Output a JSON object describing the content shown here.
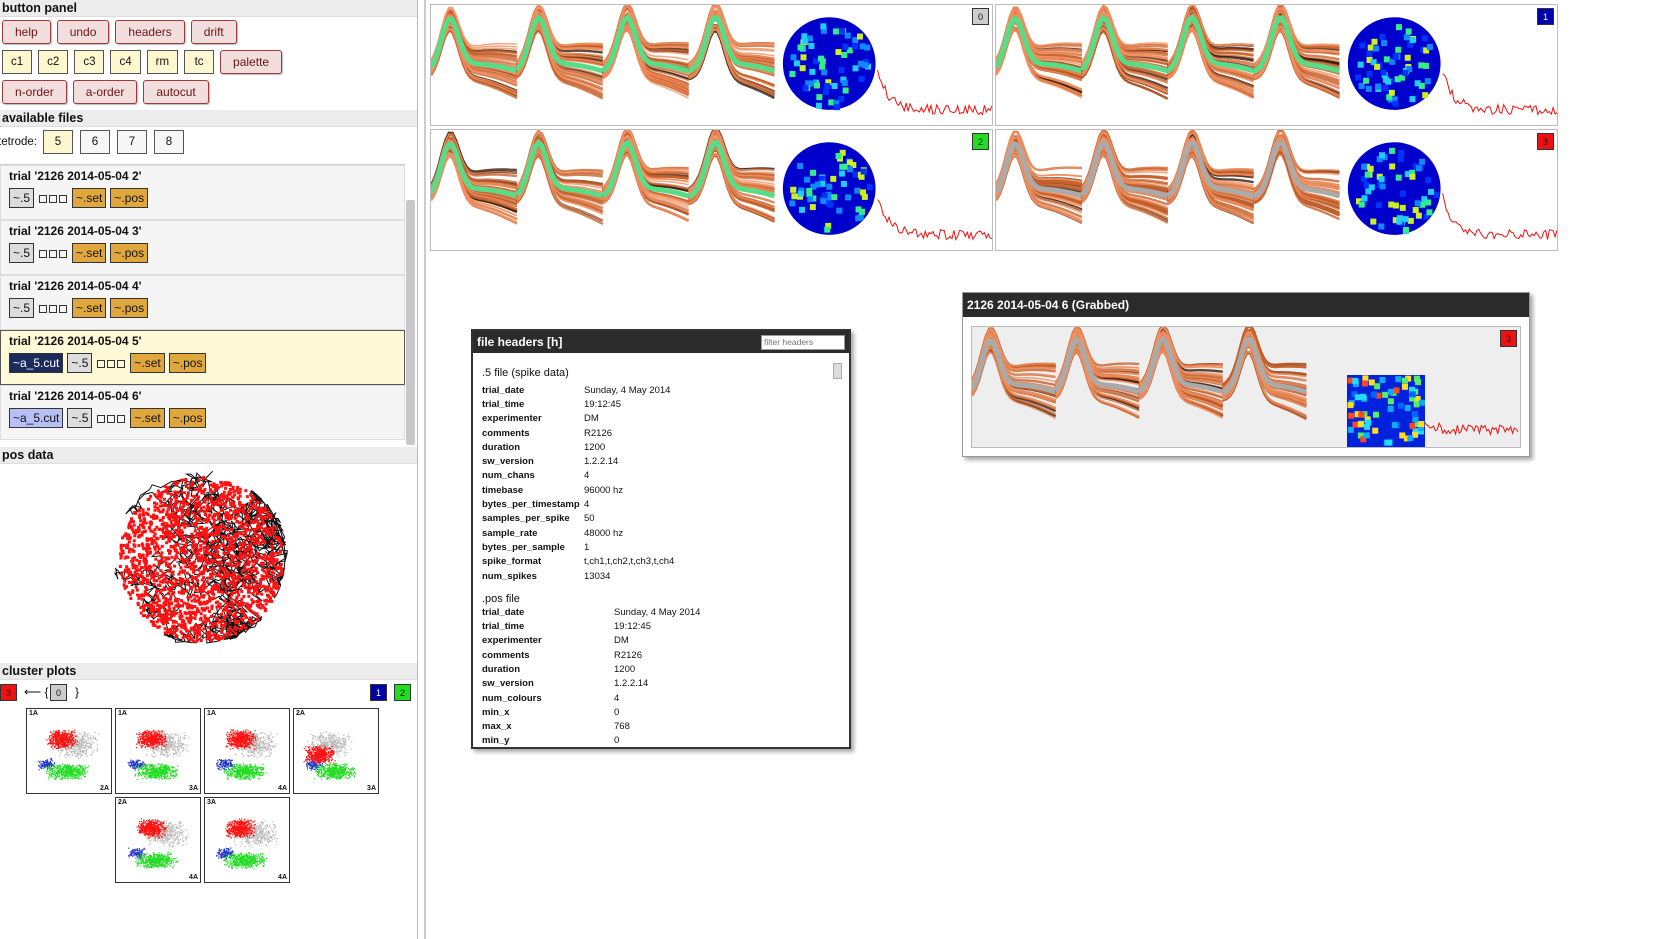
{
  "left": {
    "button_panel_title": "button panel",
    "row1": [
      "help",
      "undo",
      "headers",
      "drift"
    ],
    "row2": [
      "c1",
      "c2",
      "c3",
      "c4",
      "rm",
      "tc"
    ],
    "palette": "palette",
    "row3": [
      "n-order",
      "a-order",
      "autocut"
    ],
    "available_files_title": "available files",
    "tetrode_label": "tetrode:",
    "tetrodes": [
      "5",
      "6",
      "7",
      "8"
    ],
    "trials": [
      {
        "title": "trial '2126 2014-05-04 2'",
        "files": [
          "~.5",
          "~.set",
          "~.pos"
        ]
      },
      {
        "title": "trial '2126 2014-05-04 3'",
        "files": [
          "~.5",
          "~.set",
          "~.pos"
        ]
      },
      {
        "title": "trial '2126 2014-05-04 4'",
        "files": [
          "~.5",
          "~.set",
          "~.pos"
        ]
      },
      {
        "title": "trial '2126 2014-05-04 5'",
        "cut": "~a_5.cut",
        "files": [
          "~.5",
          "~.set",
          "~.pos"
        ]
      },
      {
        "title": "trial '2126 2014-05-04 6'",
        "cut": "~a_5.cut",
        "files": [
          "~.5",
          "~.set",
          "~.pos"
        ]
      }
    ],
    "pos_data_title": "pos data",
    "cluster_plots_title": "cluster plots",
    "cluster_src": "3",
    "cluster_arrow": "⟵ {",
    "cluster_mid": "0",
    "cluster_close": "}",
    "cluster_right": [
      "1",
      "2"
    ],
    "plot_labels": [
      [
        "1A",
        "2A"
      ],
      [
        "1A",
        "3A"
      ],
      [
        "1A",
        "4A"
      ],
      [
        "2A",
        "3A"
      ],
      [
        "2A",
        "4A"
      ],
      [
        "3A",
        "4A"
      ]
    ]
  },
  "tiles": [
    {
      "badge": "0",
      "color": "#cccccc"
    },
    {
      "badge": "1",
      "color": "#0000aa"
    },
    {
      "badge": "2",
      "color": "#22dd22"
    },
    {
      "badge": "3",
      "color": "#ee1111"
    }
  ],
  "grabbed": {
    "title": "2126 2014-05-04 6 (Grabbed)",
    "badge": "3"
  },
  "headers": {
    "title": "file headers [h]",
    "filter_placeholder": "filter headers",
    "spike_section": ".5 file (spike data)",
    "spike": [
      [
        "trial_date",
        "Sunday, 4 May 2014"
      ],
      [
        "trial_time",
        "19:12:45"
      ],
      [
        "experimenter",
        "DM"
      ],
      [
        "comments",
        "R2126"
      ],
      [
        "duration",
        "1200"
      ],
      [
        "sw_version",
        "1.2.2.14"
      ],
      [
        "num_chans",
        "4"
      ],
      [
        "timebase",
        "96000 hz"
      ],
      [
        "bytes_per_timestamp",
        "4"
      ],
      [
        "samples_per_spike",
        "50"
      ],
      [
        "sample_rate",
        "48000 hz"
      ],
      [
        "bytes_per_sample",
        "1"
      ],
      [
        "spike_format",
        "t,ch1,t,ch2,t,ch3,t,ch4"
      ],
      [
        "num_spikes",
        "13034"
      ]
    ],
    "pos_section": ".pos file",
    "pos": [
      [
        "trial_date",
        "Sunday, 4 May 2014"
      ],
      [
        "trial_time",
        "19:12:45"
      ],
      [
        "experimenter",
        "DM"
      ],
      [
        "comments",
        "R2126"
      ],
      [
        "duration",
        "1200"
      ],
      [
        "sw_version",
        "1.2.2.14"
      ],
      [
        "num_colours",
        "4"
      ],
      [
        "min_x",
        "0"
      ],
      [
        "max_x",
        "768"
      ],
      [
        "min_y",
        "0"
      ]
    ]
  }
}
